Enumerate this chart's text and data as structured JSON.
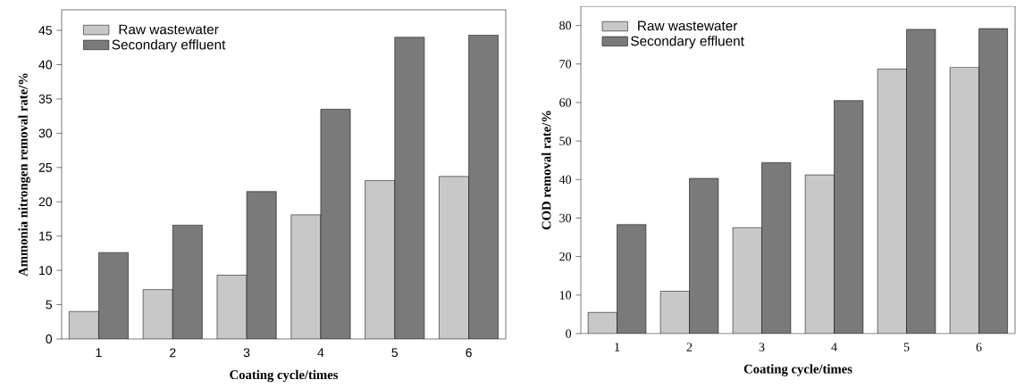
{
  "chart_data": [
    {
      "type": "bar",
      "xlabel": "Coating cycle/times",
      "ylabel": "Ammonia nitrongen removal rate/%",
      "categories": [
        "1",
        "2",
        "3",
        "4",
        "5",
        "6"
      ],
      "ylim": [
        0,
        48
      ],
      "yticks": [
        0,
        5,
        10,
        15,
        20,
        25,
        30,
        35,
        40,
        45
      ],
      "legend": "top left",
      "series": [
        {
          "name": "Raw wastewater",
          "color": "#c8c8c8",
          "values": [
            4,
            7.2,
            9.3,
            18.1,
            23.1,
            23.7
          ]
        },
        {
          "name": "Secondary effluent",
          "color": "#7a7a7a",
          "values": [
            12.6,
            16.6,
            21.5,
            33.5,
            44,
            44.3
          ]
        }
      ]
    },
    {
      "type": "bar",
      "xlabel": "Coating cycle/times",
      "ylabel": "COD removal rate/%",
      "categories": [
        "1",
        "2",
        "3",
        "4",
        "5",
        "6"
      ],
      "ylim": [
        0,
        85
      ],
      "yticks": [
        0,
        10,
        20,
        30,
        40,
        50,
        60,
        70,
        80
      ],
      "legend": "top left",
      "series": [
        {
          "name": "Raw wastewater",
          "color": "#c8c8c8",
          "values": [
            5.5,
            11,
            27.5,
            41.2,
            68.7,
            69.2
          ]
        },
        {
          "name": "Secondary effluent",
          "color": "#7a7a7a",
          "values": [
            28.3,
            40.3,
            44.4,
            60.5,
            79,
            79.2
          ]
        }
      ]
    }
  ]
}
